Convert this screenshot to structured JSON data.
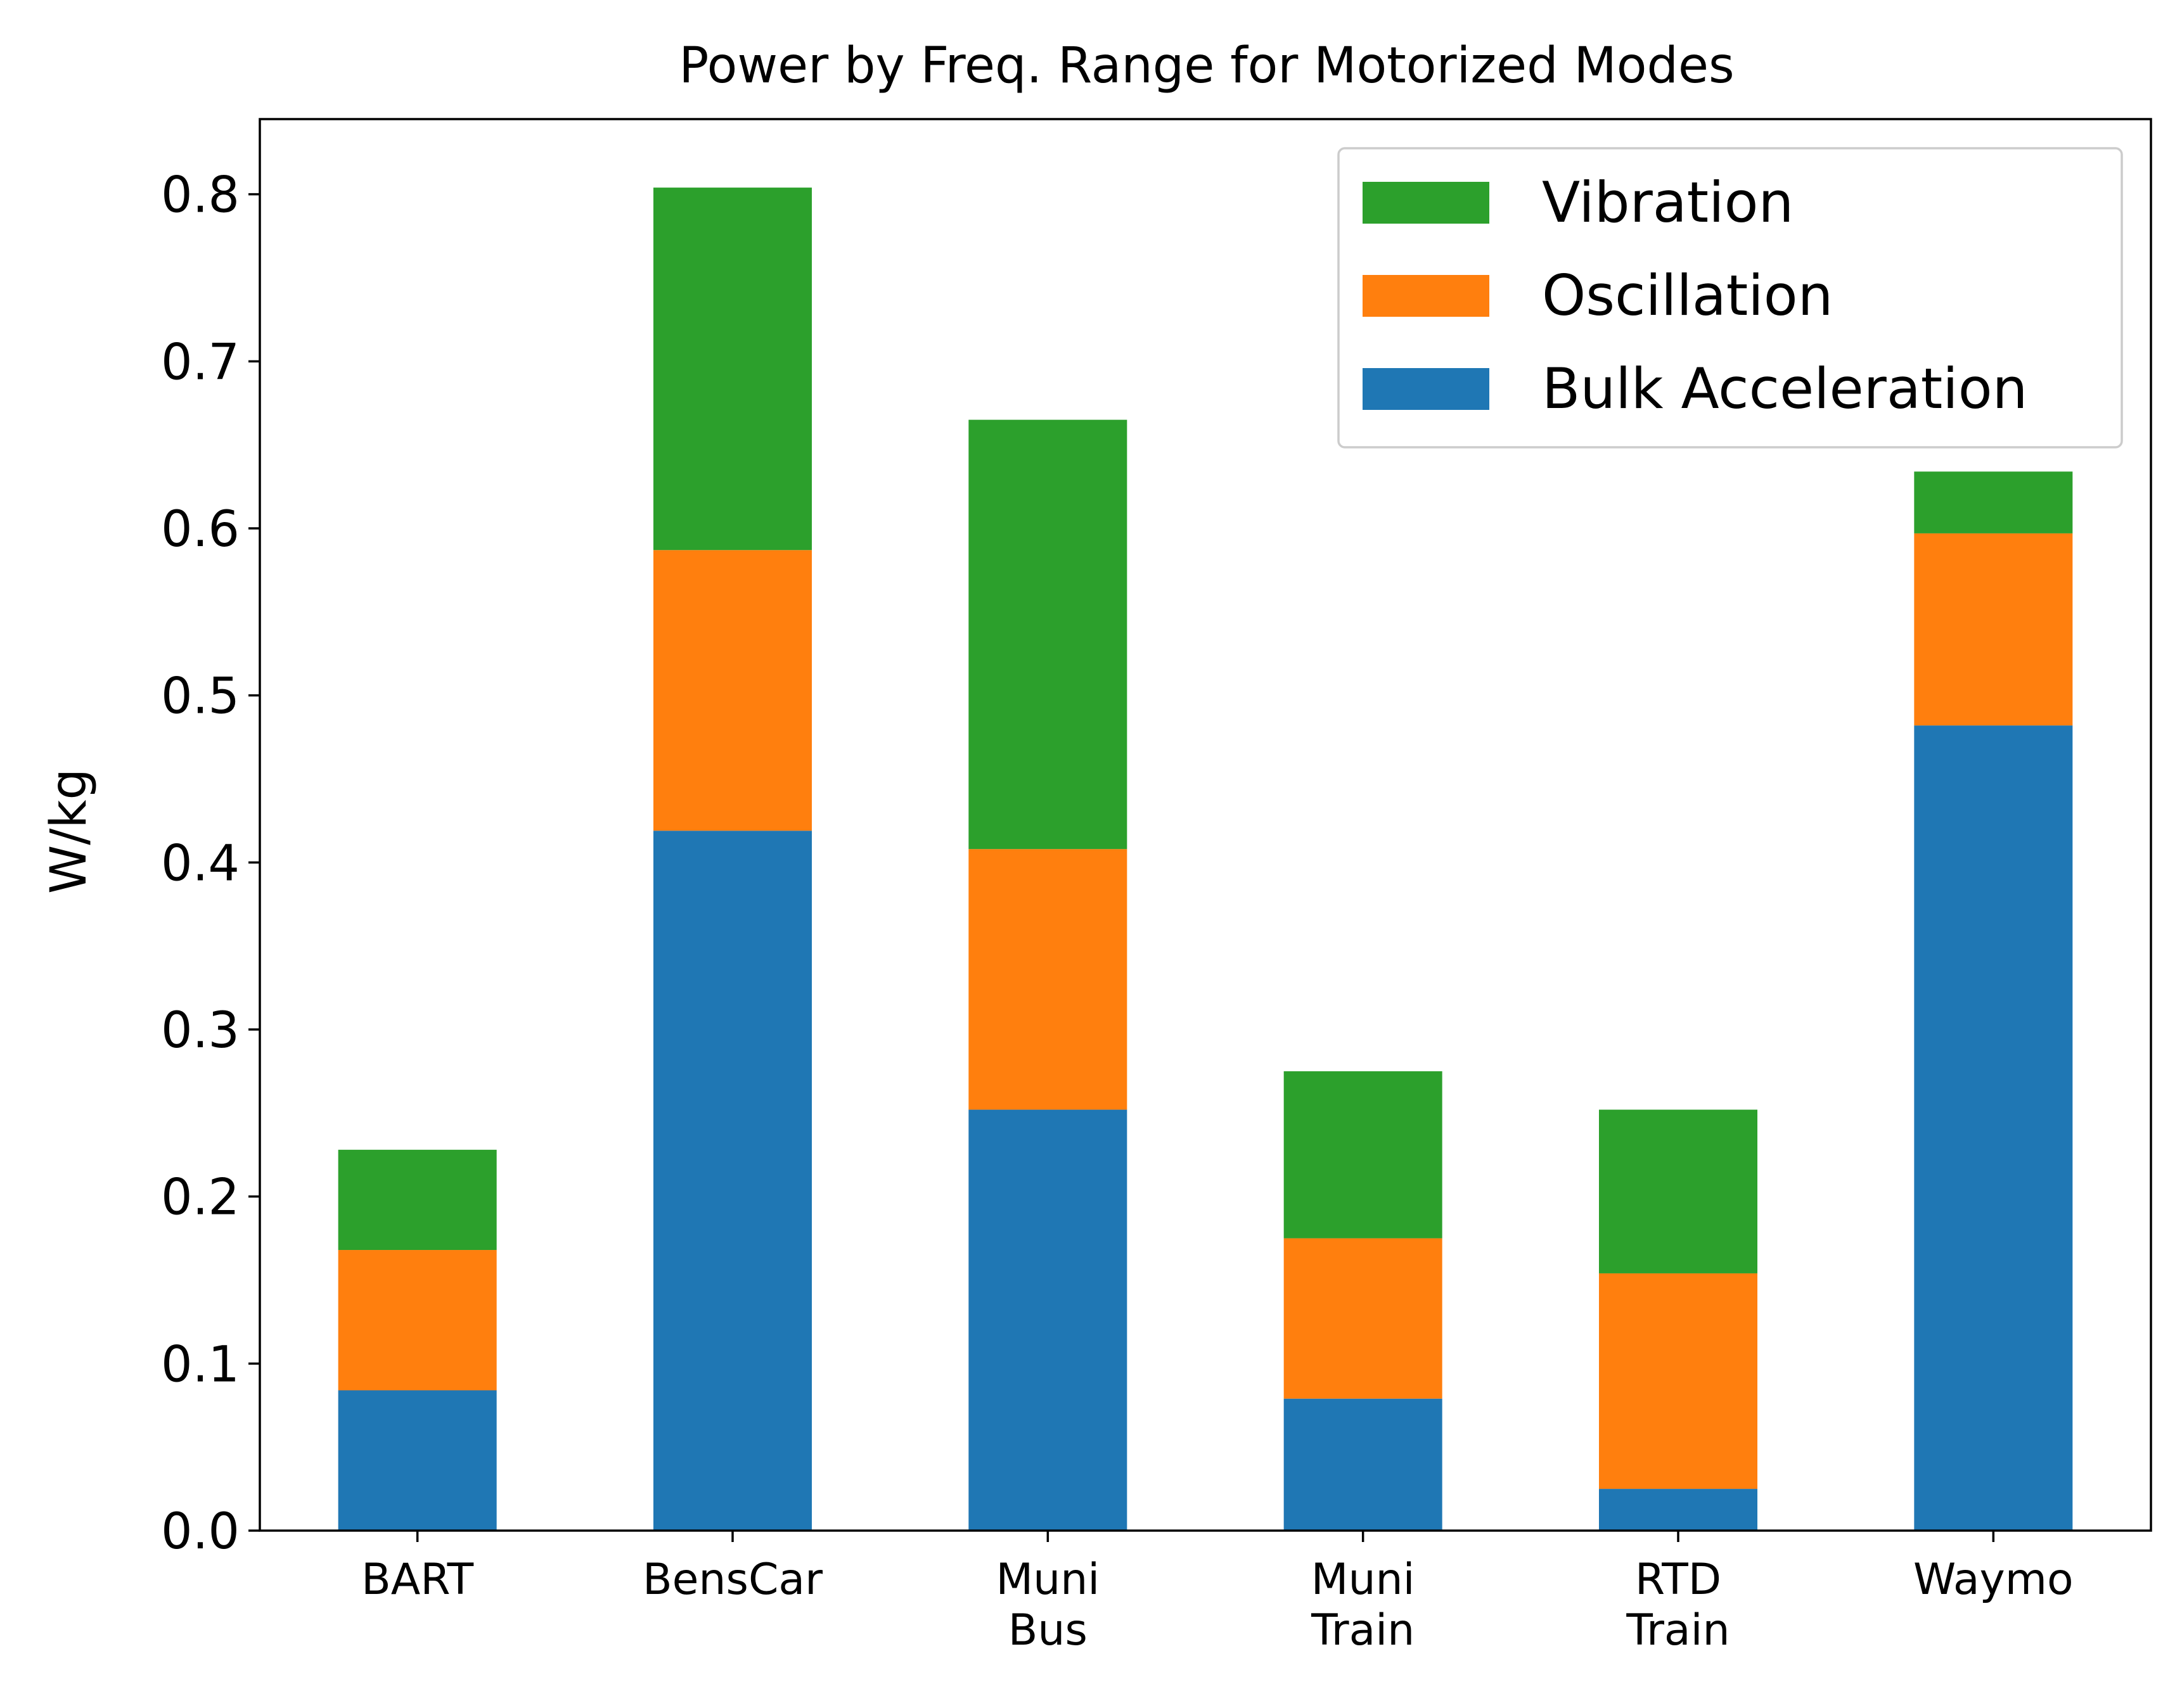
{
  "chart_data": {
    "type": "bar",
    "stacked": true,
    "title": "Power by Freq. Range for Motorized Modes",
    "xlabel": "",
    "ylabel": "W/kg",
    "ylim": [
      0,
      0.845
    ],
    "yticks": [
      "0.0",
      "0.1",
      "0.2",
      "0.3",
      "0.4",
      "0.5",
      "0.6",
      "0.7",
      "0.8"
    ],
    "categories": [
      [
        "BART"
      ],
      [
        "BensCar"
      ],
      [
        "Muni",
        "Bus"
      ],
      [
        "Muni",
        "Train"
      ],
      [
        "RTD",
        "Train"
      ],
      [
        "Waymo"
      ]
    ],
    "series": [
      {
        "name": "Bulk Acceleration",
        "color": "#1f77b4",
        "values": [
          0.084,
          0.419,
          0.252,
          0.079,
          0.025,
          0.482
        ]
      },
      {
        "name": "Oscillation",
        "color": "#ff7f0e",
        "values": [
          0.084,
          0.168,
          0.156,
          0.096,
          0.129,
          0.115
        ]
      },
      {
        "name": "Vibration",
        "color": "#2ca02c",
        "values": [
          0.06,
          0.217,
          0.257,
          0.1,
          0.098,
          0.037
        ]
      }
    ],
    "legend": {
      "placement": "top-right",
      "order": [
        "Vibration",
        "Oscillation",
        "Bulk Acceleration"
      ]
    },
    "grid": false
  }
}
